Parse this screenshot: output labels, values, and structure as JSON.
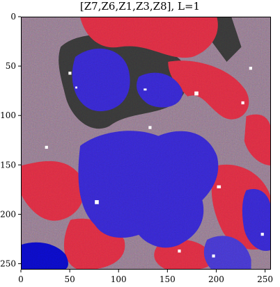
{
  "title": "[Z7,Z6,Z1,Z3,Z8], L=1",
  "image": {
    "description_kind": "segmentation-noise-map",
    "grid_size": 256,
    "colors": {
      "red_region": "#e0324a",
      "blue_region": "#3a2bd0",
      "dark_region": "#3a3a3a",
      "mixed_region": "#a08a9a",
      "deep_blue": "#0a0ac8"
    }
  },
  "x_axis": {
    "ticks": [
      "0",
      "50",
      "100",
      "150",
      "200",
      "250"
    ],
    "tick_values": [
      0,
      50,
      100,
      150,
      200,
      250
    ],
    "range": [
      0,
      256
    ]
  },
  "y_axis": {
    "ticks": [
      "0",
      "50",
      "100",
      "150",
      "200",
      "250"
    ],
    "tick_values": [
      0,
      50,
      100,
      150,
      200,
      250
    ],
    "range": [
      0,
      256
    ]
  }
}
